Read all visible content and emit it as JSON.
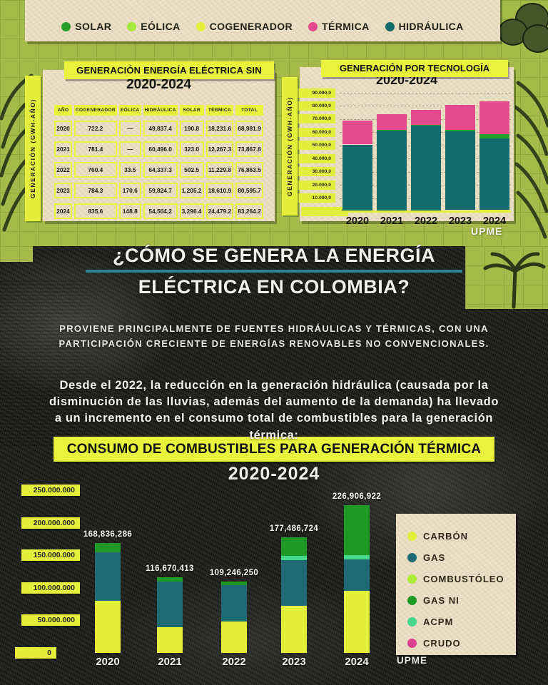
{
  "top_legend": {
    "items": [
      {
        "label": "SOLAR",
        "color": "#27a02b"
      },
      {
        "label": "EÓLICA",
        "color": "#a5e93c"
      },
      {
        "label": "COGENERADOR",
        "color": "#e4ef3b"
      },
      {
        "label": "TÉRMICA",
        "color": "#e54a8e"
      },
      {
        "label": "HIDRÁULICA",
        "color": "#156a6b"
      }
    ]
  },
  "sin_table": {
    "title": "GENERACIÓN ENERGÍA ELÉCTRICA SIN",
    "subtitle": "2020-2024",
    "y_axis_label": "GENERACIÓN (GWH-AÑO)",
    "columns": [
      "AÑO",
      "COGENERADOR",
      "EÓLICA",
      "HIDRÁULICA",
      "SOLAR",
      "TÉRMICA",
      "TOTAL"
    ],
    "rows": [
      [
        "2020",
        "722.2",
        "—",
        "49,837.4",
        "190.8",
        "18,231.6",
        "68,981.9"
      ],
      [
        "2021",
        "781.4",
        "—",
        "60,496.0",
        "323.0",
        "12,267.3",
        "73,867.8"
      ],
      [
        "2022",
        "760.4",
        "33.5",
        "64,337.3",
        "502.5",
        "11,229.8",
        "76,863.5"
      ],
      [
        "2023",
        "784.3",
        "170.6",
        "59,824.7",
        "1,205.2",
        "18,610.9",
        "80,595.7"
      ],
      [
        "2024",
        "835.6",
        "148.8",
        "54,504.2",
        "3,296.4",
        "24,479.2",
        "83,264.2"
      ]
    ]
  },
  "headline": {
    "line1": "¿CÓMO SE GENERA LA ENERGÍA",
    "line2": "ELÉCTRICA EN COLOMBIA?",
    "underline_color": "#2b8595"
  },
  "intro": {
    "text": "PROVIENE PRINCIPALMENTE DE FUENTES HIDRÁULICAS Y TÉRMICAS, CON UNA PARTICIPACIÓN CRECIENTE DE ENERGÍAS RENOVABLES NO CONVENCIONALES."
  },
  "lead": {
    "text": "Desde el 2022, la reducción en la generación hidráulica (causada por la disminución de las lluvias, además del aumento de la demanda) ha llevado a un incremento en el consumo total de combustibles para la generación térmica:"
  },
  "chart_data": [
    {
      "id": "tech",
      "type": "bar",
      "stacked": true,
      "title": "GENERACIÓN POR TECNOLOGÍA",
      "subtitle": "2020-2024",
      "ylabel": "GENERACIÓN (GWH-AÑO)",
      "categories": [
        "2020",
        "2021",
        "2022",
        "2023",
        "2024"
      ],
      "ylim": [
        0,
        90000
      ],
      "ytick_labels": [
        "90.000,0",
        "80.000,0",
        "70.000,0",
        "60.000,0",
        "50.000,0",
        "40.000,0",
        "30.000,0",
        "20.000,0",
        "10.000,0",
        "0"
      ],
      "grid": true,
      "legend_position": "shared-top-banner",
      "series": [
        {
          "name": "COGENERADOR",
          "color": "#e4ef3b",
          "values": [
            722.2,
            781.4,
            760.4,
            784.3,
            835.6
          ]
        },
        {
          "name": "EÓLICA",
          "color": "#a5e93c",
          "values": [
            0,
            0,
            33.5,
            170.6,
            148.8
          ]
        },
        {
          "name": "HIDRÁULICA",
          "color": "#156a6b",
          "values": [
            49837.4,
            60496.0,
            64337.3,
            59824.7,
            54504.2
          ]
        },
        {
          "name": "SOLAR",
          "color": "#27a02b",
          "values": [
            190.8,
            323.0,
            502.5,
            1205.2,
            3296.4
          ]
        },
        {
          "name": "TÉRMICA",
          "color": "#e54a8e",
          "values": [
            18231.6,
            12267.3,
            11229.8,
            18610.9,
            24479.2
          ]
        }
      ],
      "totals": [
        68981.9,
        73867.8,
        76863.5,
        80595.7,
        83264.2
      ],
      "source": "UPME"
    },
    {
      "id": "fuel",
      "type": "bar",
      "stacked": true,
      "title": "CONSUMO DE COMBUSTIBLES PARA GENERACIÓN TÉRMICA",
      "subtitle": "2020-2024",
      "categories": [
        "2020",
        "2021",
        "2022",
        "2023",
        "2024"
      ],
      "ylim": [
        0,
        250000000
      ],
      "ytick_labels": [
        "250.000.000",
        "200.000.000",
        "150.000.000",
        "100.000.000",
        "50.000.000",
        "0"
      ],
      "grid": false,
      "legend_position": "right",
      "bar_total_labels": [
        "168,836,286",
        "116,670,413",
        "109,246,250",
        "177,486,724",
        "226,906,922"
      ],
      "totals": [
        168836286,
        116670413,
        109246250,
        177486724,
        226906922
      ],
      "series": [
        {
          "name": "CARBÓN",
          "color": "#e4ef3b",
          "values": [
            80000000,
            40000000,
            48000000,
            72000000,
            95000000
          ]
        },
        {
          "name": "GAS",
          "color": "#1e6b76",
          "values": [
            74500000,
            70000000,
            56000000,
            71000000,
            49000000
          ]
        },
        {
          "name": "COMBUSTÓLEO",
          "color": "#aded3a",
          "values": [
            0,
            0,
            0,
            0,
            0
          ]
        },
        {
          "name": "ACPM",
          "color": "#45d98b",
          "values": [
            0,
            0,
            0,
            6000000,
            6000000
          ]
        },
        {
          "name": "GAS NI",
          "color": "#1f9a26",
          "values": [
            14336286,
            6670413,
            5246250,
            28486724,
            76906922
          ]
        },
        {
          "name": "CRUDO",
          "color": "#dc3f8d",
          "values": [
            0,
            0,
            0,
            0,
            0
          ]
        }
      ],
      "legend_items": [
        {
          "label": "CARBÓN",
          "color": "#e4ef3b"
        },
        {
          "label": "GAS",
          "color": "#1e6b76"
        },
        {
          "label": "COMBUSTÓLEO",
          "color": "#aded3a"
        },
        {
          "label": "GAS NI",
          "color": "#1f9a26"
        },
        {
          "label": "ACPM",
          "color": "#45d98b"
        },
        {
          "label": "CRUDO",
          "color": "#dc3f8d"
        }
      ],
      "source": "UPME"
    }
  ]
}
